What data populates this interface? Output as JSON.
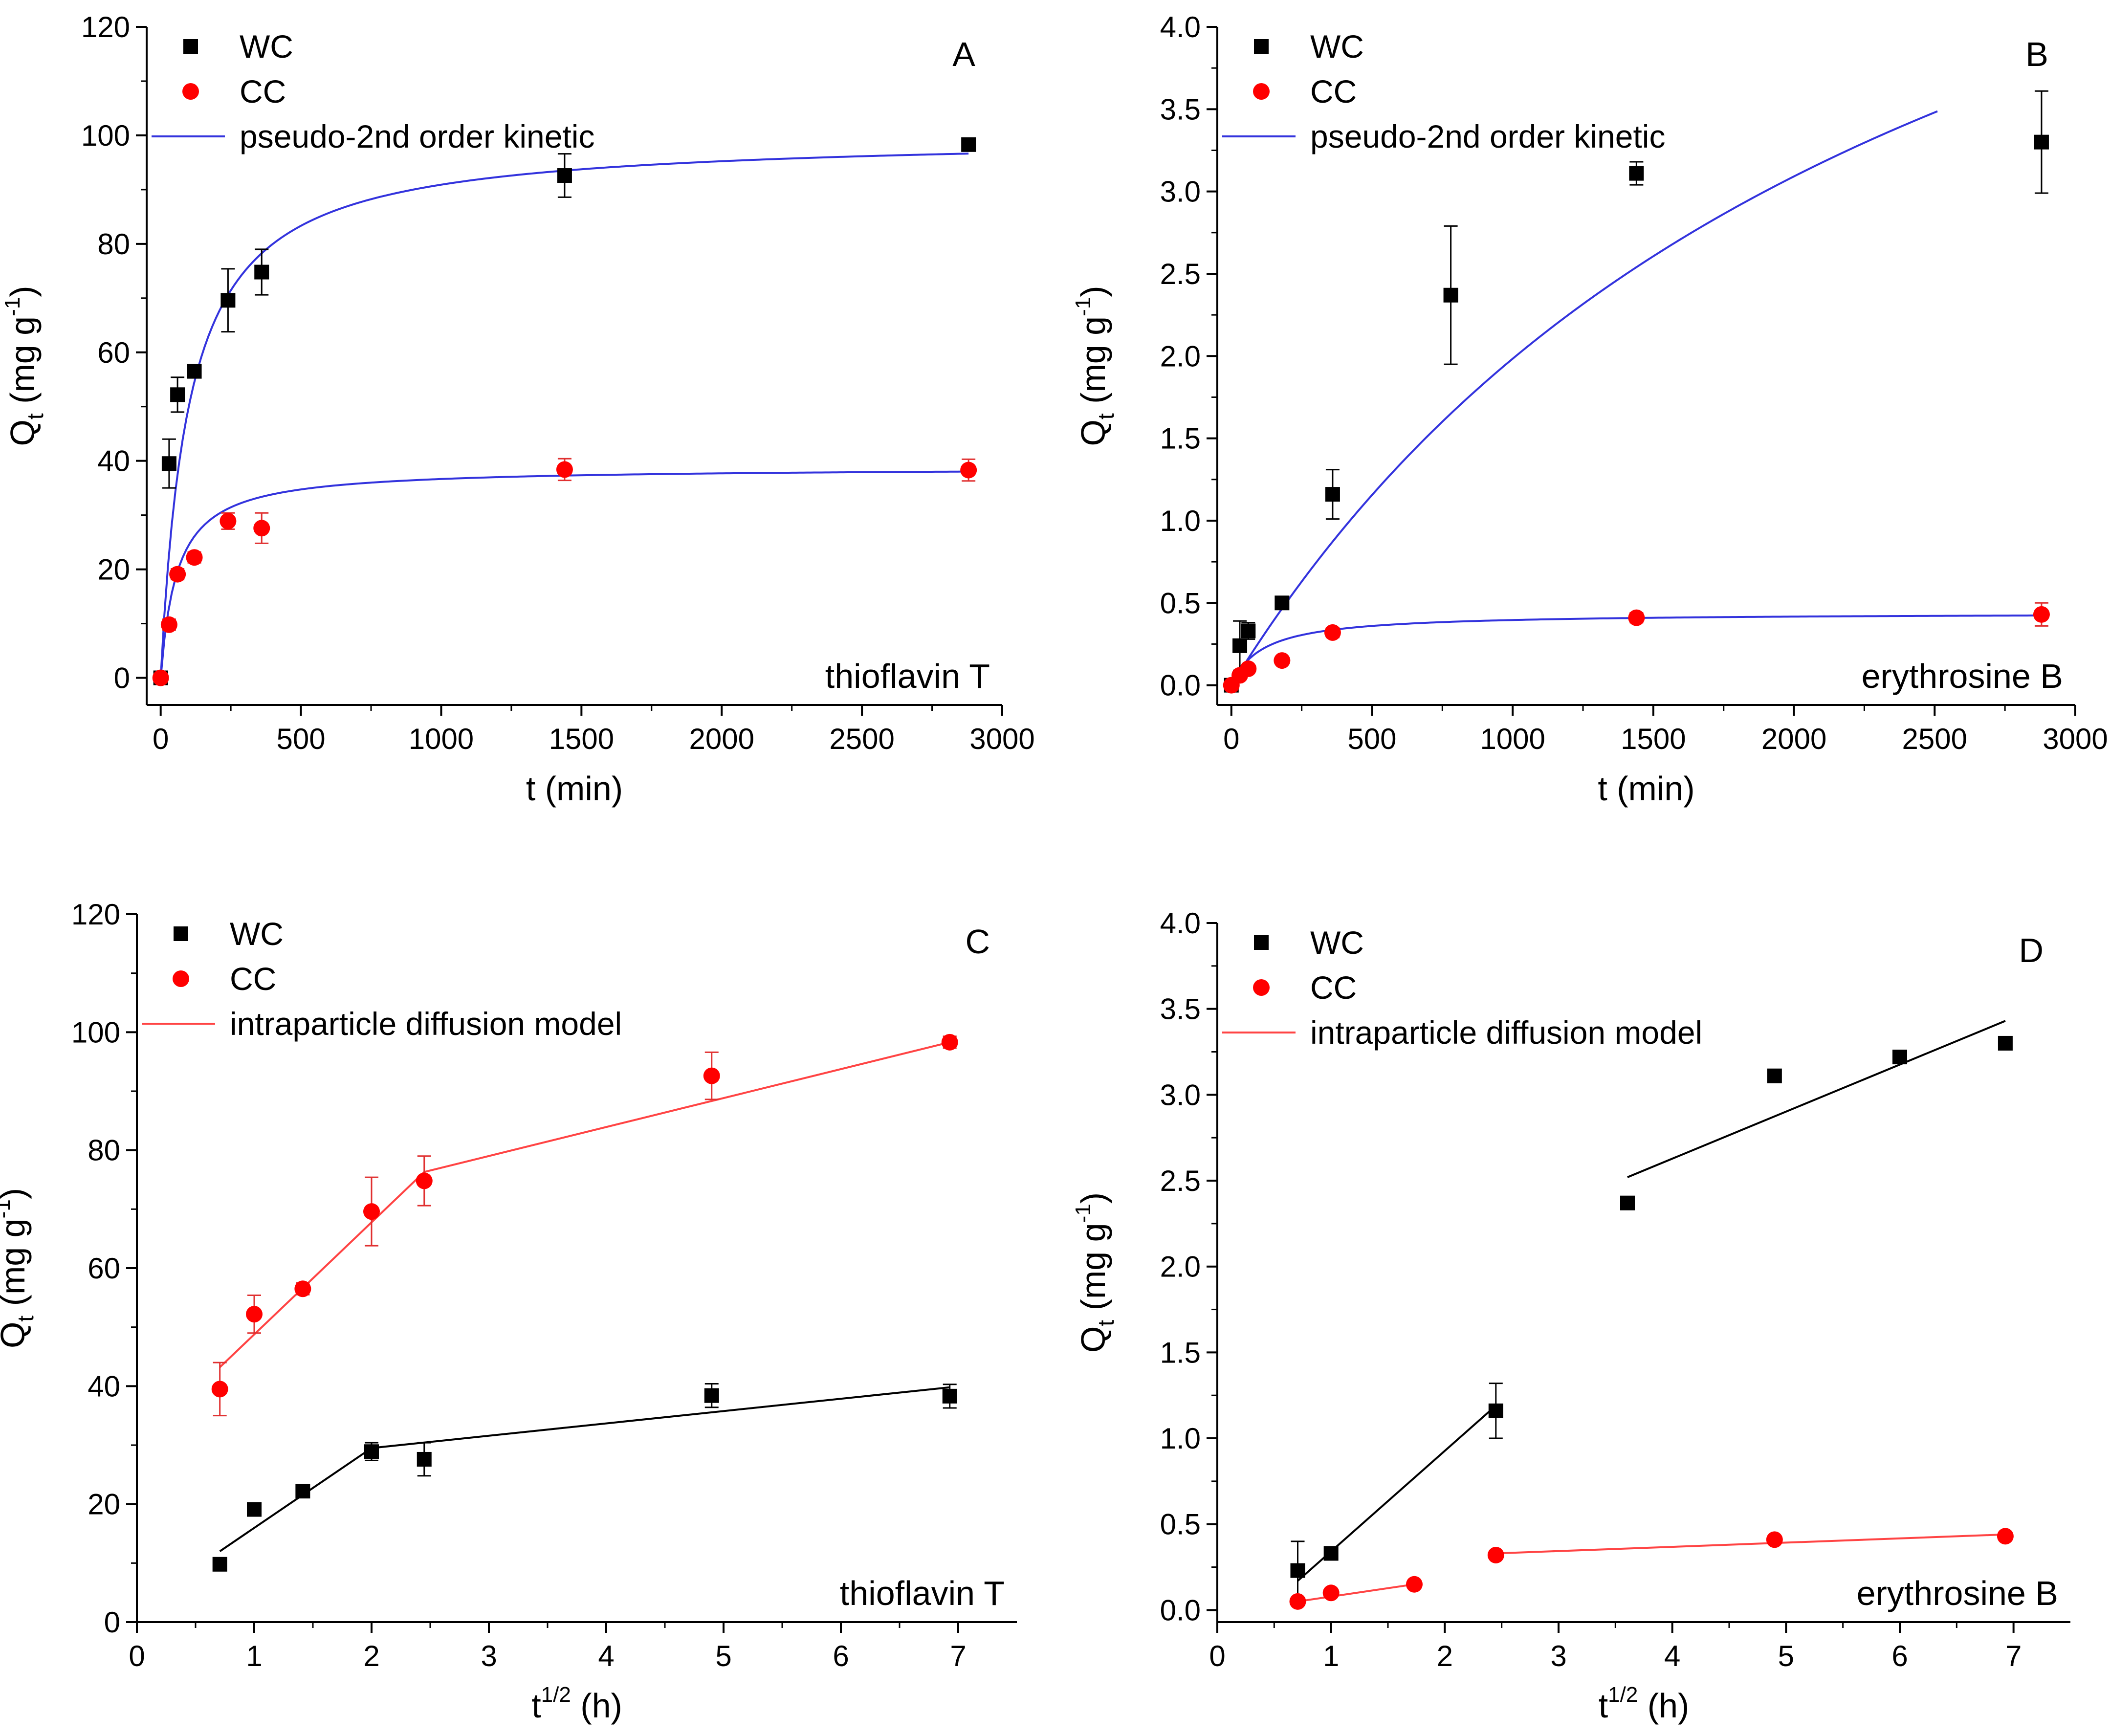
{
  "chart_data": [
    {
      "panel_label": "A",
      "type": "scatter",
      "xlabel": "t (min)",
      "ylabel_main": "Q",
      "ylabel_sub": "t",
      "ylabel_unit": "(mg g",
      "ylabel_sup": "-1",
      "ylabel_close": ")",
      "xlim": [
        -50,
        3000
      ],
      "ylim": [
        -5,
        120
      ],
      "x_ticks": [
        0,
        500,
        1000,
        1500,
        2000,
        2500,
        3000
      ],
      "y_ticks": [
        0,
        20,
        40,
        60,
        80,
        100,
        120
      ],
      "y_tick_labels": [
        "0",
        "20",
        "40",
        "60",
        "80",
        "100",
        "120"
      ],
      "annotation": "thioflavin T",
      "legend": {
        "position": "top-left",
        "entries": [
          "WC",
          "CC",
          "pseudo-2nd order kinetic"
        ]
      },
      "series": [
        {
          "name": "WC",
          "marker": "square",
          "color": "#000000",
          "x": [
            0,
            30,
            60,
            120,
            240,
            360,
            1440,
            2880
          ],
          "y": [
            0,
            39.5,
            52.2,
            56.5,
            69.6,
            74.8,
            92.6,
            98.3
          ],
          "err": [
            0,
            4.5,
            3.2,
            1.0,
            5.8,
            4.2,
            4.0,
            1.0
          ]
        },
        {
          "name": "CC",
          "marker": "circle",
          "color": "#ff0000",
          "x": [
            0,
            30,
            60,
            120,
            240,
            360,
            1440,
            2880
          ],
          "y": [
            0,
            9.8,
            19.1,
            22.2,
            28.9,
            27.6,
            38.4,
            38.3
          ],
          "err": [
            0,
            1.0,
            1.0,
            1.0,
            1.5,
            2.8,
            2.0,
            2.0
          ]
        }
      ],
      "fits": [
        {
          "label": "pseudo-2nd order kinetic",
          "color": "#3333dd",
          "model": "pseudo-second-order",
          "qe": 100,
          "k": 0.0001,
          "x_range": [
            0,
            2880
          ]
        },
        {
          "label": "pseudo-2nd order kinetic",
          "color": "#3333dd",
          "model": "pseudo-second-order",
          "qe": 38.8,
          "k": 0.00044,
          "x_range": [
            0,
            2880
          ]
        }
      ]
    },
    {
      "panel_label": "B",
      "type": "scatter",
      "xlabel": "t (min)",
      "ylabel_main": "Q",
      "ylabel_sub": "t",
      "ylabel_unit": "(mg g",
      "ylabel_sup": "-1",
      "ylabel_close": ")",
      "xlim": [
        -50,
        3000
      ],
      "ylim": [
        -0.12,
        4.0
      ],
      "x_ticks": [
        0,
        500,
        1000,
        1500,
        2000,
        2500,
        3000
      ],
      "y_ticks": [
        0,
        0.5,
        1.0,
        1.5,
        2.0,
        2.5,
        3.0,
        3.5,
        4.0
      ],
      "y_tick_labels": [
        "0.0",
        "0.5",
        "1.0",
        "1.5",
        "2.0",
        "2.5",
        "3.0",
        "3.5",
        "4.0"
      ],
      "annotation": "erythrosine B",
      "legend": {
        "position": "top-left",
        "entries": [
          "WC",
          "CC",
          "pseudo-2nd order kinetic"
        ]
      },
      "series": [
        {
          "name": "WC",
          "marker": "square",
          "color": "#000000",
          "x": [
            0,
            30,
            60,
            180,
            360,
            780,
            1440,
            2880
          ],
          "y": [
            0,
            0.24,
            0.33,
            0.5,
            1.16,
            2.37,
            3.11,
            3.3
          ],
          "err": [
            0,
            0.15,
            0.05,
            0.03,
            0.15,
            0.42,
            0.07,
            0.31
          ]
        },
        {
          "name": "CC",
          "marker": "circle",
          "color": "#ff0000",
          "x": [
            0,
            30,
            60,
            180,
            360,
            1440,
            2880
          ],
          "y": [
            0,
            0.06,
            0.1,
            0.15,
            0.32,
            0.41,
            0.43
          ],
          "err": [
            0,
            0.02,
            0.02,
            0.02,
            0.03,
            0.03,
            0.07
          ]
        }
      ],
      "fits": [
        {
          "label": "pseudo-2nd order kinetic",
          "color": "#3333dd",
          "model": "pseudo-second-order",
          "qe": 7.0,
          "k": 5.65e-05,
          "x_range": [
            0,
            2510
          ]
        },
        {
          "label": "pseudo-2nd order kinetic",
          "color": "#3333dd",
          "model": "pseudo-second-order",
          "qe": 0.44,
          "k": 0.0205,
          "x_range": [
            0,
            2880
          ]
        }
      ]
    },
    {
      "panel_label": "C",
      "type": "scatter",
      "xlabel_main": "t",
      "xlabel_sup": "1/2",
      "xlabel_unit": "(h)",
      "ylabel_main": "Q",
      "ylabel_sub": "t",
      "ylabel_unit": "(mg g",
      "ylabel_sup": "-1",
      "ylabel_close": ")",
      "xlim": [
        0,
        7.5
      ],
      "ylim": [
        0,
        120
      ],
      "x_ticks": [
        0,
        1,
        2,
        3,
        4,
        5,
        6,
        7
      ],
      "y_ticks": [
        0,
        20,
        40,
        60,
        80,
        100,
        120
      ],
      "y_tick_labels": [
        "0",
        "20",
        "40",
        "60",
        "80",
        "100",
        "120"
      ],
      "annotation": "thioflavin T",
      "legend": {
        "position": "top-left",
        "entries": [
          "WC",
          "CC",
          "intraparticle diffusion model"
        ]
      },
      "series": [
        {
          "name": "WC",
          "marker": "square",
          "color": "#000000",
          "x": [
            0.707,
            1.0,
            1.414,
            2.0,
            2.449,
            4.899,
            6.928
          ],
          "y": [
            9.8,
            19.1,
            22.2,
            28.9,
            27.6,
            38.4,
            38.3
          ],
          "err": [
            0,
            0,
            0,
            1.5,
            2.8,
            2.0,
            2.0
          ]
        },
        {
          "name": "CC",
          "marker": "circle",
          "color": "#ff0000",
          "x": [
            0.707,
            1.0,
            1.414,
            2.0,
            2.449,
            4.899,
            6.928
          ],
          "y": [
            39.5,
            52.2,
            56.5,
            69.6,
            74.8,
            92.6,
            98.3
          ],
          "err": [
            4.5,
            3.2,
            1.0,
            5.8,
            4.2,
            4.0,
            1.0
          ]
        }
      ],
      "fits": [
        {
          "label": "intraparticle diffusion model",
          "color": "#000000",
          "points": [
            [
              0.707,
              12.0
            ],
            [
              2.0,
              29.5
            ],
            [
              6.928,
              39.8
            ]
          ]
        },
        {
          "label": "intraparticle diffusion model",
          "color": "#ff4444",
          "points": [
            [
              0.707,
              43.2
            ],
            [
              2.449,
              76.3
            ],
            [
              6.928,
              98.3
            ]
          ]
        }
      ]
    },
    {
      "panel_label": "D",
      "type": "scatter",
      "xlabel_main": "t",
      "xlabel_sup": "1/2",
      "xlabel_unit": "(h)",
      "ylabel_main": "Q",
      "ylabel_sub": "t",
      "ylabel_unit": "(mg g",
      "ylabel_sup": "-1",
      "ylabel_close": ")",
      "xlim": [
        0,
        7.5
      ],
      "ylim": [
        -0.07,
        4.0
      ],
      "x_ticks": [
        0,
        1,
        2,
        3,
        4,
        5,
        6,
        7
      ],
      "y_ticks": [
        0,
        0.5,
        1.0,
        1.5,
        2.0,
        2.5,
        3.0,
        3.5,
        4.0
      ],
      "y_tick_labels": [
        "0.0",
        "0.5",
        "1.0",
        "1.5",
        "2.0",
        "2.5",
        "3.0",
        "3.5",
        "4.0"
      ],
      "annotation": "erythrosine B",
      "legend": {
        "position": "top-left",
        "entries": [
          "WC",
          "CC",
          "intraparticle diffusion model"
        ]
      },
      "series": [
        {
          "name": "WC",
          "marker": "square",
          "color": "#000000",
          "x": [
            0.707,
            1.0,
            2.449,
            3.606,
            4.899,
            6.0,
            6.928
          ],
          "y": [
            0.23,
            0.33,
            1.16,
            2.37,
            3.11,
            3.22,
            3.3
          ],
          "err": [
            0.17,
            0,
            0.16,
            0,
            0,
            0,
            0
          ]
        },
        {
          "name": "CC",
          "marker": "circle",
          "color": "#ff0000",
          "x": [
            0.707,
            1.0,
            1.732,
            2.449,
            4.899,
            6.928
          ],
          "y": [
            0.05,
            0.1,
            0.15,
            0.32,
            0.41,
            0.43
          ],
          "err": [
            0,
            0,
            0,
            0,
            0,
            0
          ]
        }
      ],
      "fits": [
        {
          "label": "intraparticle diffusion model",
          "color": "#000000",
          "points": [
            [
              0.707,
              0.17
            ],
            [
              2.449,
              1.19
            ]
          ]
        },
        {
          "label": "intraparticle diffusion model",
          "color": "#000000",
          "points": [
            [
              3.606,
              2.52
            ],
            [
              6.928,
              3.43
            ]
          ]
        },
        {
          "label": "intraparticle diffusion model",
          "color": "#ff4444",
          "points": [
            [
              0.707,
              0.05
            ],
            [
              1.732,
              0.15
            ]
          ]
        },
        {
          "label": "intraparticle diffusion model",
          "color": "#ff4444",
          "points": [
            [
              2.449,
              0.33
            ],
            [
              6.928,
              0.44
            ]
          ]
        }
      ]
    }
  ]
}
